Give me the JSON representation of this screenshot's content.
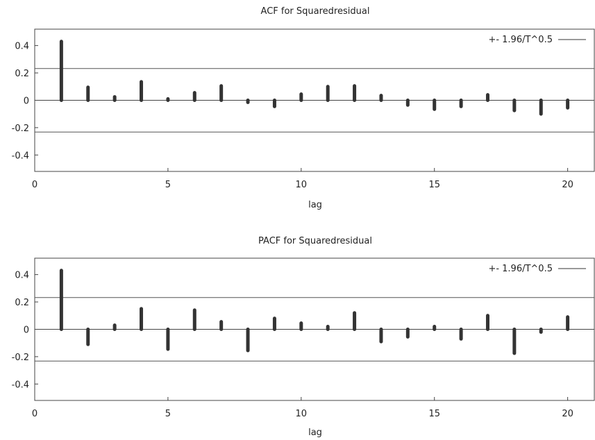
{
  "chart_data": [
    {
      "type": "bar",
      "title": "ACF for Squaredresidual",
      "xlabel": "lag",
      "ylabel": "",
      "xlim": [
        0,
        21
      ],
      "ylim": [
        -0.52,
        0.52
      ],
      "xticks": [
        0,
        5,
        10,
        15,
        20
      ],
      "yticks": [
        0.4,
        0.2,
        0,
        -0.2,
        -0.4
      ],
      "ytick_labels": [
        "0.4",
        "0.2",
        "0",
        "-0.2",
        "-0.4"
      ],
      "xtick_labels": [
        "0",
        "5",
        "10",
        "15",
        "20"
      ],
      "band": 0.232,
      "legend": "+- 1.96/T^0.5",
      "legend_position": "top-right",
      "grid": false,
      "lags": [
        1,
        2,
        3,
        4,
        5,
        6,
        7,
        8,
        9,
        10,
        11,
        12,
        13,
        14,
        15,
        16,
        17,
        18,
        19,
        20
      ],
      "values": [
        0.43,
        0.095,
        0.025,
        0.135,
        0.01,
        0.055,
        0.105,
        -0.015,
        -0.045,
        0.045,
        0.1,
        0.105,
        0.035,
        -0.035,
        -0.065,
        -0.045,
        0.04,
        -0.075,
        -0.1,
        -0.055
      ]
    },
    {
      "type": "bar",
      "title": "PACF for Squaredresidual",
      "xlabel": "lag",
      "ylabel": "",
      "xlim": [
        0,
        21
      ],
      "ylim": [
        -0.52,
        0.52
      ],
      "xticks": [
        0,
        5,
        10,
        15,
        20
      ],
      "yticks": [
        0.4,
        0.2,
        0,
        -0.2,
        -0.4
      ],
      "ytick_labels": [
        "0.4",
        "0.2",
        "0",
        "-0.2",
        "-0.4"
      ],
      "xtick_labels": [
        "0",
        "5",
        "10",
        "15",
        "20"
      ],
      "band": 0.232,
      "legend": "+- 1.96/T^0.5",
      "legend_position": "top-right",
      "grid": false,
      "lags": [
        1,
        2,
        3,
        4,
        5,
        6,
        7,
        8,
        9,
        10,
        11,
        12,
        13,
        14,
        15,
        16,
        17,
        18,
        19,
        20
      ],
      "values": [
        0.43,
        -0.11,
        0.03,
        0.15,
        -0.145,
        0.14,
        0.055,
        -0.155,
        0.08,
        0.045,
        0.02,
        0.12,
        -0.09,
        -0.055,
        0.02,
        -0.07,
        0.1,
        -0.175,
        -0.02,
        0.09
      ]
    }
  ]
}
